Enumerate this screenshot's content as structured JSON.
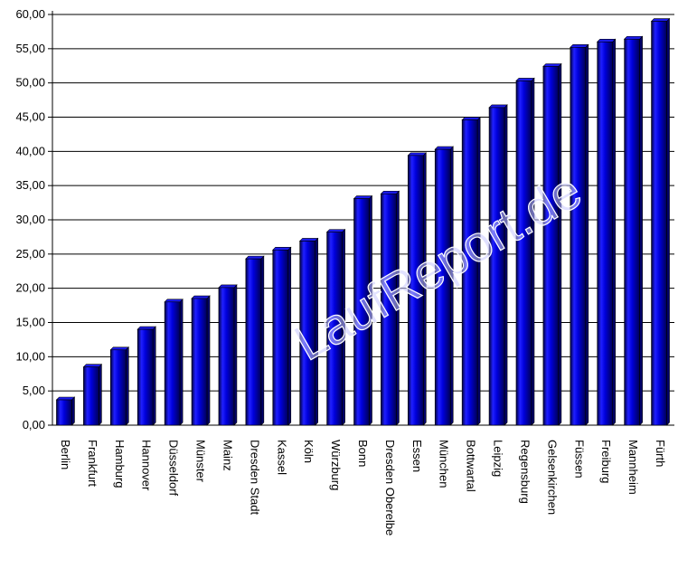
{
  "chart_data": {
    "type": "bar",
    "categories": [
      "Berlin",
      "Frankfurt",
      "Hamburg",
      "Hannover",
      "Düsseldorf",
      "Münster",
      "Mainz",
      "Dresden Stadt",
      "Kassel",
      "Köln",
      "Würzburg",
      "Bonn",
      "Dresden Oberelbe",
      "Essen",
      "München",
      "Bottwartal",
      "Leipzig",
      "Regensburg",
      "Gelsenkirchen",
      "Füssen",
      "Freiburg",
      "Mannheim",
      "Fürth"
    ],
    "values": [
      3.7,
      8.5,
      11.0,
      14.0,
      18.0,
      18.5,
      20.1,
      24.3,
      25.6,
      26.9,
      28.2,
      33.1,
      33.8,
      39.4,
      40.3,
      44.6,
      46.4,
      50.3,
      52.4,
      55.2,
      56.0,
      56.4,
      59.0
    ],
    "ylim": [
      0,
      60
    ],
    "yticks": [
      "0,00",
      "5,00",
      "10,00",
      "15,00",
      "20,00",
      "25,00",
      "30,00",
      "35,00",
      "40,00",
      "45,00",
      "50,00",
      "55,00",
      "60,00"
    ],
    "grid": true,
    "legend": "none",
    "title": "",
    "xlabel": "",
    "ylabel": "",
    "watermark": "LaufReport.de",
    "colors": {
      "bar_light": "#3a3aff",
      "bar_mid": "#0000cc",
      "bar_dark": "#000033",
      "bar_top": "#1a1aee",
      "bar_side": "#00006a",
      "grid": "#000000"
    }
  }
}
